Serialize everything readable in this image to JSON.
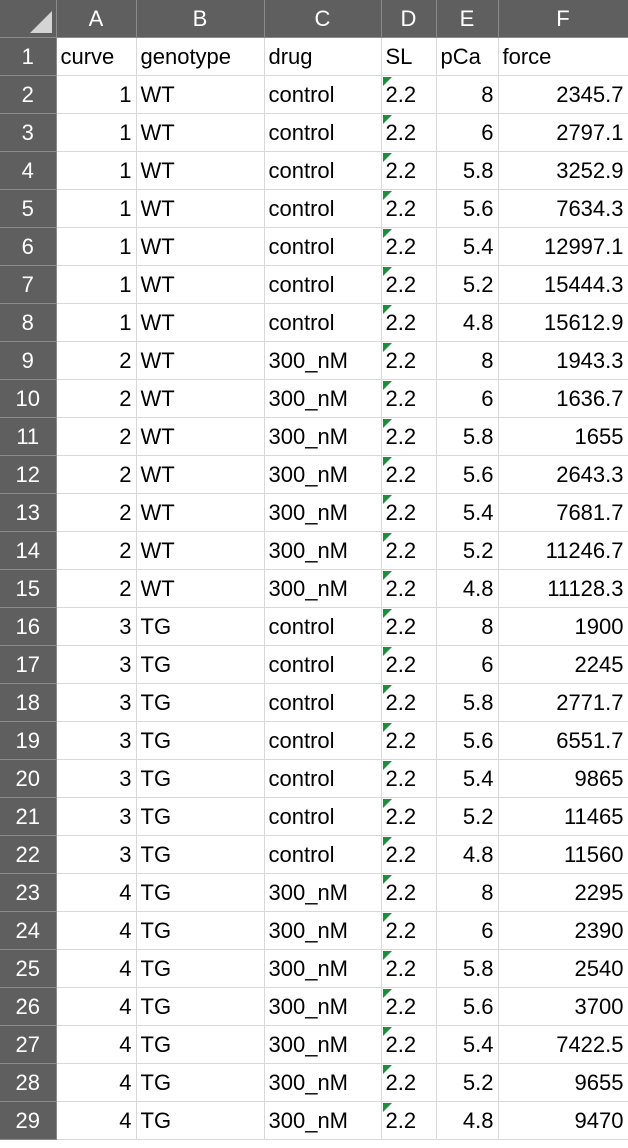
{
  "columns": [
    "A",
    "B",
    "C",
    "D",
    "E",
    "F"
  ],
  "header_row": {
    "number": "1",
    "cells": [
      "curve",
      "genotype",
      "drug",
      "SL",
      "pCa",
      "force"
    ]
  },
  "rows": [
    {
      "num": "2",
      "curve": "1",
      "genotype": "WT",
      "drug": "control",
      "sl": "2.2",
      "pca": "8",
      "force": "2345.7"
    },
    {
      "num": "3",
      "curve": "1",
      "genotype": "WT",
      "drug": "control",
      "sl": "2.2",
      "pca": "6",
      "force": "2797.1"
    },
    {
      "num": "4",
      "curve": "1",
      "genotype": "WT",
      "drug": "control",
      "sl": "2.2",
      "pca": "5.8",
      "force": "3252.9"
    },
    {
      "num": "5",
      "curve": "1",
      "genotype": "WT",
      "drug": "control",
      "sl": "2.2",
      "pca": "5.6",
      "force": "7634.3"
    },
    {
      "num": "6",
      "curve": "1",
      "genotype": "WT",
      "drug": "control",
      "sl": "2.2",
      "pca": "5.4",
      "force": "12997.1"
    },
    {
      "num": "7",
      "curve": "1",
      "genotype": "WT",
      "drug": "control",
      "sl": "2.2",
      "pca": "5.2",
      "force": "15444.3"
    },
    {
      "num": "8",
      "curve": "1",
      "genotype": "WT",
      "drug": "control",
      "sl": "2.2",
      "pca": "4.8",
      "force": "15612.9"
    },
    {
      "num": "9",
      "curve": "2",
      "genotype": "WT",
      "drug": "300_nM",
      "sl": "2.2",
      "pca": "8",
      "force": "1943.3"
    },
    {
      "num": "10",
      "curve": "2",
      "genotype": "WT",
      "drug": "300_nM",
      "sl": "2.2",
      "pca": "6",
      "force": "1636.7"
    },
    {
      "num": "11",
      "curve": "2",
      "genotype": "WT",
      "drug": "300_nM",
      "sl": "2.2",
      "pca": "5.8",
      "force": "1655"
    },
    {
      "num": "12",
      "curve": "2",
      "genotype": "WT",
      "drug": "300_nM",
      "sl": "2.2",
      "pca": "5.6",
      "force": "2643.3"
    },
    {
      "num": "13",
      "curve": "2",
      "genotype": "WT",
      "drug": "300_nM",
      "sl": "2.2",
      "pca": "5.4",
      "force": "7681.7"
    },
    {
      "num": "14",
      "curve": "2",
      "genotype": "WT",
      "drug": "300_nM",
      "sl": "2.2",
      "pca": "5.2",
      "force": "11246.7"
    },
    {
      "num": "15",
      "curve": "2",
      "genotype": "WT",
      "drug": "300_nM",
      "sl": "2.2",
      "pca": "4.8",
      "force": "11128.3"
    },
    {
      "num": "16",
      "curve": "3",
      "genotype": "TG",
      "drug": "control",
      "sl": "2.2",
      "pca": "8",
      "force": "1900"
    },
    {
      "num": "17",
      "curve": "3",
      "genotype": "TG",
      "drug": "control",
      "sl": "2.2",
      "pca": "6",
      "force": "2245"
    },
    {
      "num": "18",
      "curve": "3",
      "genotype": "TG",
      "drug": "control",
      "sl": "2.2",
      "pca": "5.8",
      "force": "2771.7"
    },
    {
      "num": "19",
      "curve": "3",
      "genotype": "TG",
      "drug": "control",
      "sl": "2.2",
      "pca": "5.6",
      "force": "6551.7"
    },
    {
      "num": "20",
      "curve": "3",
      "genotype": "TG",
      "drug": "control",
      "sl": "2.2",
      "pca": "5.4",
      "force": "9865"
    },
    {
      "num": "21",
      "curve": "3",
      "genotype": "TG",
      "drug": "control",
      "sl": "2.2",
      "pca": "5.2",
      "force": "11465"
    },
    {
      "num": "22",
      "curve": "3",
      "genotype": "TG",
      "drug": "control",
      "sl": "2.2",
      "pca": "4.8",
      "force": "11560"
    },
    {
      "num": "23",
      "curve": "4",
      "genotype": "TG",
      "drug": "300_nM",
      "sl": "2.2",
      "pca": "8",
      "force": "2295"
    },
    {
      "num": "24",
      "curve": "4",
      "genotype": "TG",
      "drug": "300_nM",
      "sl": "2.2",
      "pca": "6",
      "force": "2390"
    },
    {
      "num": "25",
      "curve": "4",
      "genotype": "TG",
      "drug": "300_nM",
      "sl": "2.2",
      "pca": "5.8",
      "force": "2540"
    },
    {
      "num": "26",
      "curve": "4",
      "genotype": "TG",
      "drug": "300_nM",
      "sl": "2.2",
      "pca": "5.6",
      "force": "3700"
    },
    {
      "num": "27",
      "curve": "4",
      "genotype": "TG",
      "drug": "300_nM",
      "sl": "2.2",
      "pca": "5.4",
      "force": "7422.5"
    },
    {
      "num": "28",
      "curve": "4",
      "genotype": "TG",
      "drug": "300_nM",
      "sl": "2.2",
      "pca": "5.2",
      "force": "9655"
    },
    {
      "num": "29",
      "curve": "4",
      "genotype": "TG",
      "drug": "300_nM",
      "sl": "2.2",
      "pca": "4.8",
      "force": "9470"
    }
  ],
  "number_stored_as_text_column": "D",
  "colors": {
    "header_bg": "#5f5f5f",
    "header_text": "#ffffff",
    "gridline": "#d8d8d8",
    "error_flag": "#1e8e3e"
  },
  "icons": {
    "corner": "select-all-triangle-icon",
    "flag": "number-stored-as-text-indicator-icon"
  }
}
